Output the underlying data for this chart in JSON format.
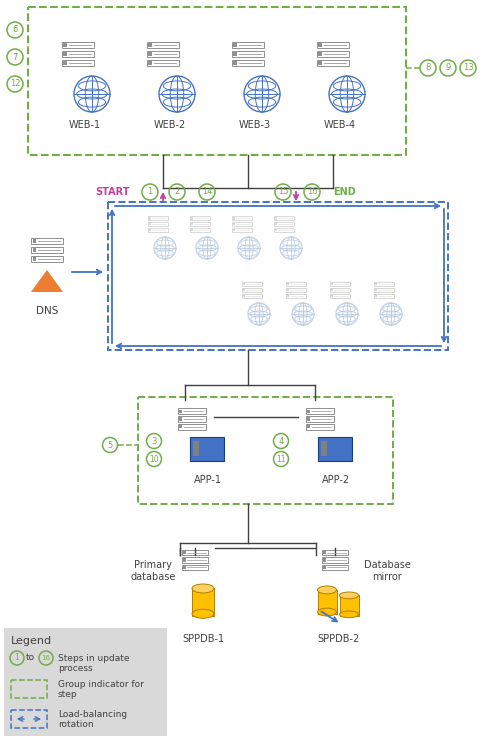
{
  "bg_color": "#ffffff",
  "server_color": "#909090",
  "globe_color": "#4472c4",
  "green_color": "#70ad47",
  "pink_color": "#c040a0",
  "blue_color": "#4472c4",
  "orange_color": "#ed7d31",
  "gold_color": "#ffc000",
  "gray_color": "#d9d9d9",
  "dark_color": "#404040",
  "web_labels": [
    "WEB-1",
    "WEB-2",
    "WEB-3",
    "WEB-4"
  ],
  "app_labels": [
    "APP-1",
    "APP-2"
  ],
  "db_labels": [
    "SPPDB-1",
    "SPPDB-2"
  ]
}
